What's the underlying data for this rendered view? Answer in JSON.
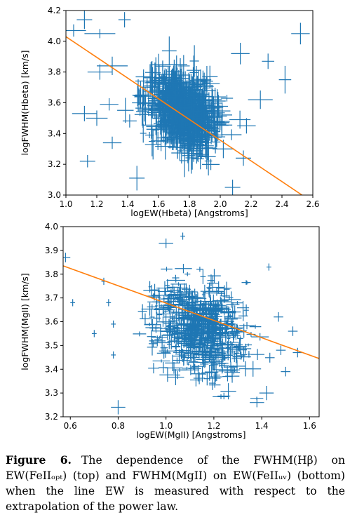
{
  "figure": {
    "caption_label": "Figure 6.",
    "caption_text": "The dependence of the FWHM(Hβ) on EW(FeIIₒₚₜ) (top) and FWHM(MgII) on EW(FeIIᵤᵥ) (bottom) when the line EW is measured with respect to the extrapolation of the power law."
  },
  "colors": {
    "points": "#1f77b4",
    "fit": "#ff7f0e",
    "axes": "#000000"
  },
  "chart_data": [
    {
      "type": "scatter",
      "title": "",
      "xlabel": "logEW(Hbeta) [Angstroms]",
      "ylabel": "logFWHM(Hbeta) [km/s]",
      "xlim": [
        1.0,
        2.6
      ],
      "ylim": [
        3.0,
        4.2
      ],
      "xticks": [
        1.0,
        1.2,
        1.4,
        1.6,
        1.8,
        2.0,
        2.2,
        2.4,
        2.6
      ],
      "xtick_labels": [
        "1.0",
        "1.2",
        "1.4",
        "1.6",
        "1.8",
        "2.0",
        "2.2",
        "2.4",
        "2.6"
      ],
      "yticks": [
        3.0,
        3.2,
        3.4,
        3.6,
        3.8,
        4.0,
        4.2
      ],
      "ytick_labels": [
        "3.0",
        "3.2",
        "3.4",
        "3.6",
        "3.8",
        "4.0",
        "4.2"
      ],
      "grid": false,
      "fit_line": {
        "x": [
          1.0,
          2.53
        ],
        "y": [
          4.03,
          3.0
        ]
      },
      "cloud": {
        "x_center": 1.76,
        "y_center": 3.55,
        "x_sd": 0.16,
        "y_sd": 0.17,
        "n": 750
      },
      "series": [
        {
          "values": [
            [
              1.05,
              4.07,
              0.08,
              0.04
            ],
            [
              1.12,
              4.14,
              0.05,
              0.06
            ],
            [
              1.22,
              4.05,
              0.1,
              0.03
            ],
            [
              1.38,
              4.14,
              0.04,
              0.05
            ],
            [
              1.3,
              3.84,
              0.1,
              0.06
            ],
            [
              1.22,
              3.8,
              0.08,
              0.05
            ],
            [
              1.12,
              3.53,
              0.08,
              0.05
            ],
            [
              1.14,
              3.22,
              0.05,
              0.04
            ],
            [
              1.28,
              3.59,
              0.06,
              0.04
            ],
            [
              1.46,
              3.11,
              0.05,
              0.08
            ],
            [
              2.52,
              4.05,
              0.06,
              0.07
            ],
            [
              2.42,
              3.75,
              0.04,
              0.09
            ],
            [
              2.31,
              3.87,
              0.04,
              0.05
            ],
            [
              2.13,
              3.92,
              0.06,
              0.07
            ],
            [
              2.26,
              3.62,
              0.08,
              0.06
            ],
            [
              2.17,
              3.45,
              0.06,
              0.05
            ],
            [
              2.02,
              3.3,
              0.07,
              0.06
            ],
            [
              2.15,
              3.24,
              0.05,
              0.05
            ],
            [
              1.3,
              3.34,
              0.06,
              0.04
            ],
            [
              1.2,
              3.5,
              0.07,
              0.05
            ],
            [
              2.08,
              3.05,
              0.05,
              0.05
            ]
          ]
        }
      ]
    },
    {
      "type": "scatter",
      "title": "",
      "xlabel": "logEW(MgII) [Angstroms]",
      "ylabel": "logFWHM(MgII) [km/s]",
      "xlim": [
        0.57,
        1.64
      ],
      "ylim": [
        3.2,
        4.0
      ],
      "xticks": [
        0.6,
        0.8,
        1.0,
        1.2,
        1.4,
        1.6
      ],
      "xtick_labels": [
        "0.6",
        "0.8",
        "1.0",
        "1.2",
        "1.4",
        "1.6"
      ],
      "yticks": [
        3.2,
        3.3,
        3.4,
        3.5,
        3.6,
        3.7,
        3.8,
        3.9,
        4.0
      ],
      "ytick_labels": [
        "3.2",
        "3.3",
        "3.4",
        "3.5",
        "3.6",
        "3.7",
        "3.8",
        "3.9",
        "4.0"
      ],
      "grid": false,
      "fit_line": {
        "x": [
          0.57,
          1.64
        ],
        "y": [
          3.835,
          3.445
        ]
      },
      "cloud": {
        "x_center": 1.14,
        "y_center": 3.57,
        "x_sd": 0.13,
        "y_sd": 0.13,
        "n": 650
      },
      "series": [
        {
          "values": [
            [
              0.58,
              3.87,
              0.02,
              0.02
            ],
            [
              0.61,
              3.68,
              0.01,
              0.015
            ],
            [
              0.7,
              3.55,
              0.01,
              0.015
            ],
            [
              0.74,
              3.77,
              0.01,
              0.015
            ],
            [
              0.76,
              3.68,
              0.01,
              0.015
            ],
            [
              0.8,
              3.24,
              0.03,
              0.03
            ],
            [
              0.78,
              3.46,
              0.01,
              0.015
            ],
            [
              0.78,
              3.59,
              0.01,
              0.015
            ],
            [
              1.0,
              3.93,
              0.03,
              0.02
            ],
            [
              1.07,
              3.96,
              0.01,
              0.015
            ],
            [
              1.55,
              3.47,
              0.02,
              0.02
            ],
            [
              1.53,
              3.56,
              0.02,
              0.02
            ],
            [
              1.48,
              3.48,
              0.02,
              0.02
            ],
            [
              1.5,
              3.39,
              0.02,
              0.02
            ],
            [
              1.42,
              3.3,
              0.03,
              0.03
            ],
            [
              1.38,
              3.26,
              0.03,
              0.02
            ],
            [
              1.47,
              3.62,
              0.02,
              0.02
            ],
            [
              1.43,
              3.83,
              0.01,
              0.015
            ]
          ]
        }
      ]
    }
  ]
}
